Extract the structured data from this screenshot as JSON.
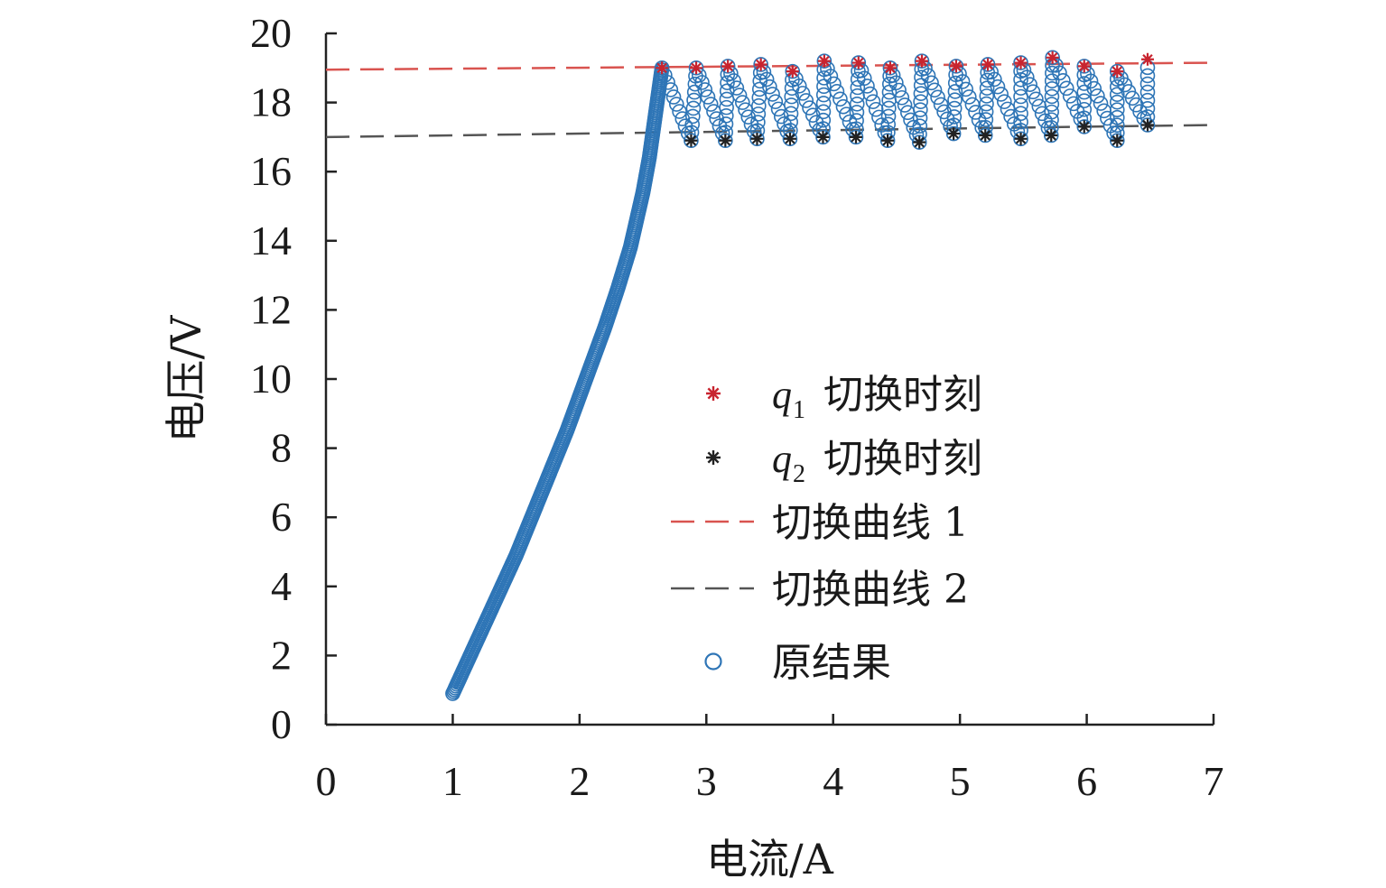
{
  "chart_data": {
    "type": "scatter",
    "xlabel": "电流/A",
    "ylabel": "电压/V",
    "xlim": [
      0,
      7
    ],
    "ylim": [
      0,
      20
    ],
    "xticks": [
      "0",
      "1",
      "2",
      "3",
      "4",
      "5",
      "6",
      "7"
    ],
    "yticks": [
      "0",
      "2",
      "4",
      "6",
      "8",
      "10",
      "12",
      "14",
      "16",
      "18",
      "20"
    ],
    "grid": false,
    "legend_position": "center-right",
    "legend": [
      {
        "marker": "star",
        "color": "#c8242f",
        "var": "q",
        "sub": "1",
        "label": "切换时刻"
      },
      {
        "marker": "star",
        "color": "#222222",
        "var": "q",
        "sub": "2",
        "label": "切换时刻"
      },
      {
        "marker": "dashed-line",
        "color": "#d9534f",
        "label": "切换曲线 1"
      },
      {
        "marker": "dashed-line",
        "color": "#555555",
        "label": "切换曲线 2"
      },
      {
        "marker": "circle",
        "color": "#2e75b6",
        "label": "原结果"
      }
    ],
    "series": [
      {
        "id": "switch_curve_1",
        "style": "dashed",
        "color": "#d9534f",
        "x": [
          0,
          7
        ],
        "y": [
          18.95,
          19.15
        ]
      },
      {
        "id": "switch_curve_2",
        "style": "dashed",
        "color": "#555555",
        "x": [
          0,
          7
        ],
        "y": [
          17.0,
          17.35
        ]
      },
      {
        "id": "q1_switch_moments",
        "style": "star",
        "color": "#c8242f",
        "x": [
          2.65,
          2.92,
          3.17,
          3.43,
          3.68,
          3.93,
          4.2,
          4.45,
          4.7,
          4.97,
          5.22,
          5.48,
          5.73,
          5.98,
          6.24,
          6.48
        ],
        "y": [
          19.0,
          19.0,
          19.05,
          19.1,
          18.9,
          19.2,
          19.15,
          19.0,
          19.2,
          19.05,
          19.1,
          19.15,
          19.3,
          19.05,
          18.9,
          19.25
        ]
      },
      {
        "id": "q2_switch_moments",
        "style": "star",
        "color": "#222222",
        "x": [
          2.88,
          3.15,
          3.4,
          3.66,
          3.92,
          4.18,
          4.43,
          4.68,
          4.95,
          5.2,
          5.48,
          5.72,
          5.98,
          6.24,
          6.48
        ],
        "y": [
          16.9,
          16.9,
          16.95,
          16.95,
          17.0,
          17.0,
          16.9,
          16.85,
          17.1,
          17.05,
          16.95,
          17.05,
          17.3,
          16.9,
          17.35
        ]
      },
      {
        "id": "original_result_rise",
        "style": "circle-line",
        "color": "#2e75b6",
        "x": [
          1.0,
          1.1,
          1.2,
          1.3,
          1.4,
          1.5,
          1.6,
          1.7,
          1.8,
          1.9,
          2.0,
          2.1,
          2.2,
          2.3,
          2.4,
          2.5,
          2.55,
          2.6,
          2.65
        ],
        "y": [
          0.9,
          1.7,
          2.5,
          3.3,
          4.1,
          4.9,
          5.8,
          6.7,
          7.6,
          8.5,
          9.5,
          10.5,
          11.5,
          12.6,
          13.8,
          15.4,
          16.4,
          17.7,
          19.0
        ]
      }
    ]
  }
}
